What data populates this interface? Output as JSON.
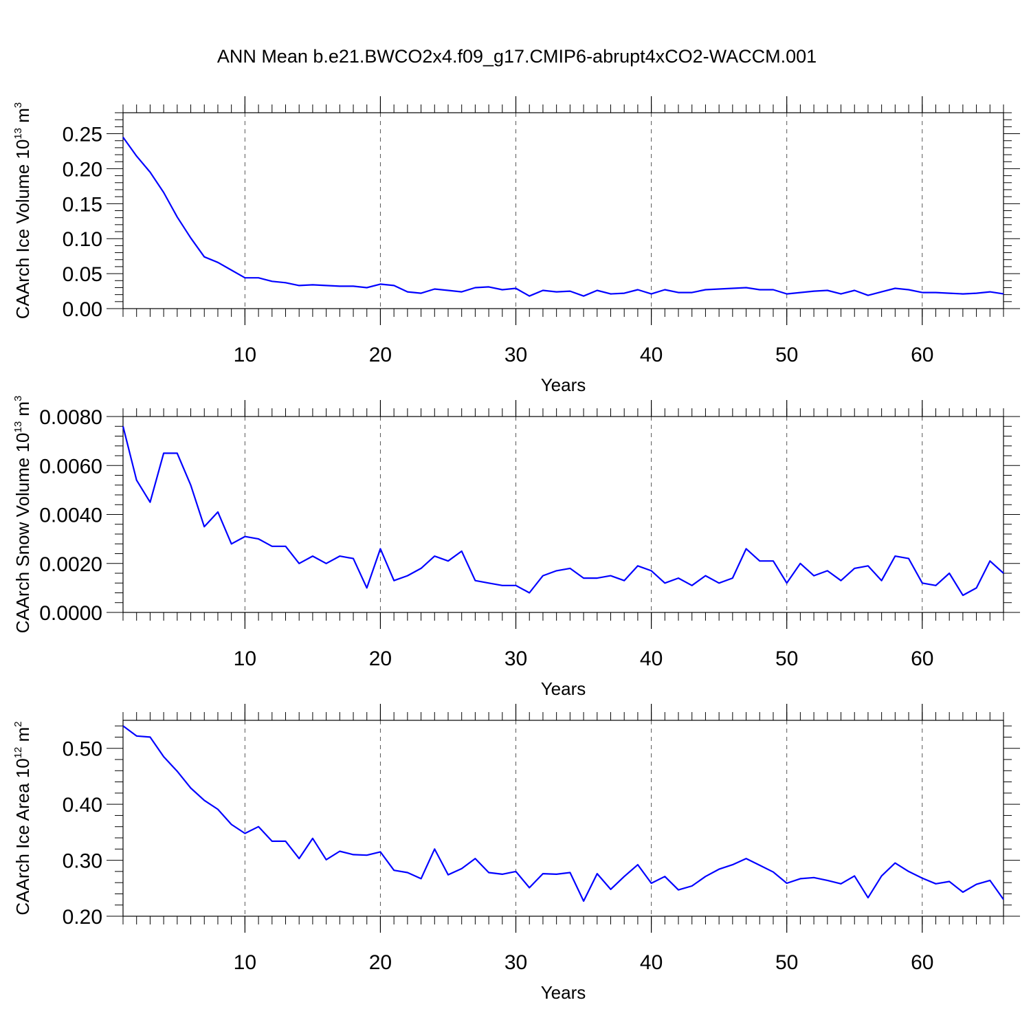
{
  "title": "ANN Mean b.e21.BWCO2x4.f09_g17.CMIP6-abrupt4xCO2-WACCM.001",
  "colors": {
    "line": "#0000ff",
    "axis": "#000000",
    "grid": "#555555",
    "background": "#ffffff"
  },
  "chart_data": [
    {
      "type": "line",
      "title": "",
      "xlabel": "Years",
      "ylabel": {
        "prefix": "CAArch Ice Volume 10",
        "exponent": "13",
        "unit": " m",
        "unit_exponent": "3"
      },
      "xlim": [
        1,
        66
      ],
      "ylim": [
        0.0,
        0.28
      ],
      "xticks": [
        10,
        20,
        30,
        40,
        50,
        60
      ],
      "xtick_labels": [
        "10",
        "20",
        "30",
        "40",
        "50",
        "60"
      ],
      "yticks": [
        0.0,
        0.05,
        0.1,
        0.15,
        0.2,
        0.25
      ],
      "ytick_labels": [
        "0.00",
        "0.05",
        "0.10",
        "0.15",
        "0.20",
        "0.25"
      ],
      "grid": "x-dashed",
      "series": [
        {
          "name": "Ice Volume",
          "x_start": 1,
          "values": [
            0.245,
            0.218,
            0.195,
            0.166,
            0.131,
            0.101,
            0.074,
            0.066,
            0.055,
            0.044,
            0.044,
            0.039,
            0.037,
            0.033,
            0.034,
            0.033,
            0.032,
            0.032,
            0.03,
            0.035,
            0.033,
            0.024,
            0.022,
            0.028,
            0.026,
            0.024,
            0.03,
            0.031,
            0.027,
            0.029,
            0.018,
            0.026,
            0.024,
            0.025,
            0.018,
            0.026,
            0.021,
            0.022,
            0.027,
            0.021,
            0.027,
            0.023,
            0.023,
            0.027,
            0.028,
            0.029,
            0.03,
            0.027,
            0.027,
            0.021,
            0.023,
            0.025,
            0.026,
            0.021,
            0.026,
            0.019,
            0.024,
            0.029,
            0.027,
            0.023,
            0.023,
            0.022,
            0.021,
            0.022,
            0.024,
            0.021
          ]
        }
      ]
    },
    {
      "type": "line",
      "title": "",
      "xlabel": "Years",
      "ylabel": {
        "prefix": "CAArch Snow Volume 10",
        "exponent": "13",
        "unit": " m",
        "unit_exponent": "3"
      },
      "xlim": [
        1,
        66
      ],
      "ylim": [
        0.0,
        0.008
      ],
      "xticks": [
        10,
        20,
        30,
        40,
        50,
        60
      ],
      "xtick_labels": [
        "10",
        "20",
        "30",
        "40",
        "50",
        "60"
      ],
      "yticks": [
        0.0,
        0.002,
        0.004,
        0.006,
        0.008
      ],
      "ytick_labels": [
        "0.0000",
        "0.0020",
        "0.0040",
        "0.0060",
        "0.0080"
      ],
      "grid": "x-dashed",
      "series": [
        {
          "name": "Snow Volume",
          "x_start": 1,
          "values": [
            0.0076,
            0.0054,
            0.0045,
            0.0065,
            0.0065,
            0.0052,
            0.0035,
            0.0041,
            0.0028,
            0.0031,
            0.003,
            0.0027,
            0.0027,
            0.002,
            0.0023,
            0.002,
            0.0023,
            0.0022,
            0.001,
            0.0026,
            0.0013,
            0.0015,
            0.0018,
            0.0023,
            0.0021,
            0.0025,
            0.0013,
            0.0012,
            0.0011,
            0.0011,
            0.0008,
            0.0015,
            0.0017,
            0.0018,
            0.0014,
            0.0014,
            0.0015,
            0.0013,
            0.0019,
            0.0017,
            0.0012,
            0.0014,
            0.0011,
            0.0015,
            0.0012,
            0.0014,
            0.0026,
            0.0021,
            0.0021,
            0.0012,
            0.002,
            0.0015,
            0.0017,
            0.0013,
            0.0018,
            0.0019,
            0.0013,
            0.0023,
            0.0022,
            0.0012,
            0.0011,
            0.0016,
            0.0007,
            0.001,
            0.0021,
            0.0016
          ]
        }
      ]
    },
    {
      "type": "line",
      "title": "",
      "xlabel": "Years",
      "ylabel": {
        "prefix": "CAArch Ice Area 10",
        "exponent": "12",
        "unit": " m",
        "unit_exponent": "2"
      },
      "xlim": [
        1,
        66
      ],
      "ylim": [
        0.2,
        0.55
      ],
      "xticks": [
        10,
        20,
        30,
        40,
        50,
        60
      ],
      "xtick_labels": [
        "10",
        "20",
        "30",
        "40",
        "50",
        "60"
      ],
      "yticks": [
        0.2,
        0.3,
        0.4,
        0.5
      ],
      "ytick_labels": [
        "0.20",
        "0.30",
        "0.40",
        "0.50"
      ],
      "grid": "x-dashed",
      "series": [
        {
          "name": "Ice Area",
          "x_start": 1,
          "values": [
            0.54,
            0.522,
            0.52,
            0.485,
            0.459,
            0.429,
            0.407,
            0.391,
            0.364,
            0.348,
            0.36,
            0.334,
            0.334,
            0.303,
            0.339,
            0.301,
            0.316,
            0.31,
            0.309,
            0.315,
            0.282,
            0.278,
            0.267,
            0.32,
            0.274,
            0.285,
            0.303,
            0.278,
            0.275,
            0.28,
            0.251,
            0.276,
            0.275,
            0.278,
            0.227,
            0.276,
            0.248,
            0.271,
            0.292,
            0.259,
            0.271,
            0.247,
            0.254,
            0.271,
            0.284,
            0.292,
            0.303,
            0.291,
            0.279,
            0.259,
            0.267,
            0.269,
            0.264,
            0.258,
            0.272,
            0.233,
            0.272,
            0.295,
            0.28,
            0.268,
            0.258,
            0.262,
            0.243,
            0.257,
            0.264,
            0.23
          ]
        }
      ]
    }
  ]
}
